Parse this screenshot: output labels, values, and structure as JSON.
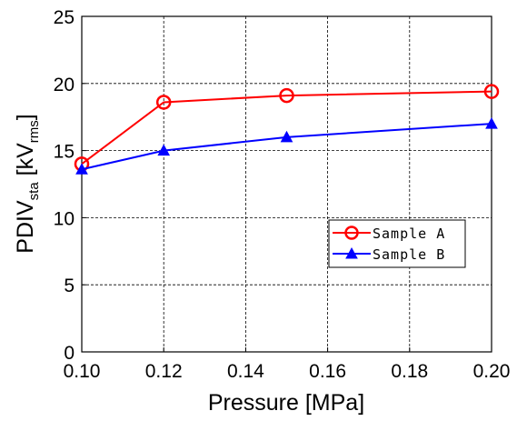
{
  "chart_data": {
    "type": "line",
    "xlabel": "Pressure [MPa]",
    "ylabel": {
      "main": "PDIV",
      "main_sub": "sta",
      "unit_open": " [kV",
      "unit_sub": "rms",
      "unit_close": "]"
    },
    "xlim": [
      0.1,
      0.2
    ],
    "ylim": [
      0,
      25
    ],
    "x_ticks": [
      "0.10",
      "0.12",
      "0.14",
      "0.16",
      "0.18",
      "0.20"
    ],
    "y_ticks": [
      "0",
      "5",
      "10",
      "15",
      "20",
      "25"
    ],
    "grid": true,
    "legend_position": "center-right",
    "series": [
      {
        "name": "Sample A",
        "color": "#ff0000",
        "marker": "circle",
        "x": [
          0.1,
          0.12,
          0.15,
          0.2
        ],
        "y": [
          14.0,
          18.6,
          19.1,
          19.4
        ]
      },
      {
        "name": "Sample B",
        "color": "#0000ff",
        "marker": "triangle",
        "x": [
          0.1,
          0.12,
          0.15,
          0.2
        ],
        "y": [
          13.6,
          15.0,
          16.0,
          17.0
        ]
      }
    ]
  }
}
